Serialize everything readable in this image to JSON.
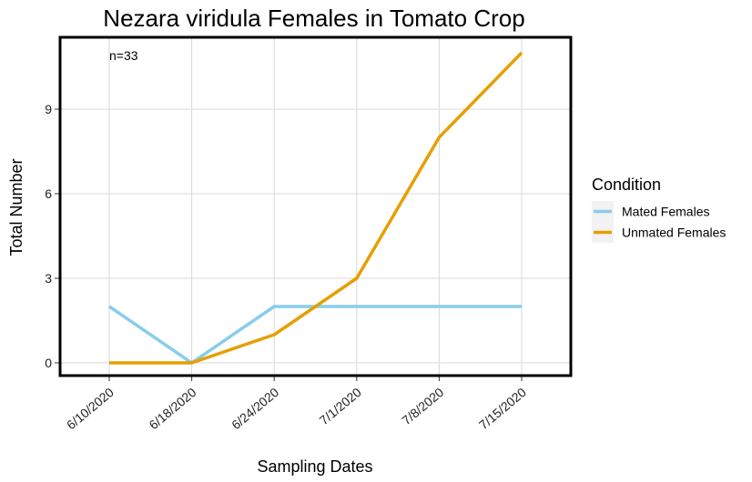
{
  "chart_data": {
    "type": "line",
    "title": "Nezara viridula Females in Tomato Crop",
    "xlabel": "Sampling Dates",
    "ylabel": "Total Number",
    "categories": [
      "6/10/2020",
      "6/18/2020",
      "6/24/2020",
      "7/1/2020",
      "7/8/2020",
      "7/15/2020"
    ],
    "yticks": [
      0,
      3,
      6,
      9
    ],
    "ylim": [
      -0.5,
      11.6
    ],
    "grid": true,
    "annotation": "n=33",
    "legend": {
      "title": "Condition",
      "position": "right"
    },
    "series": [
      {
        "name": "Mated Females",
        "color": "#87ceeb",
        "values": [
          2,
          0,
          2,
          2,
          2,
          2
        ]
      },
      {
        "name": "Unmated Females",
        "color": "#e69f00",
        "values": [
          0,
          0,
          1,
          3,
          8,
          11
        ]
      }
    ]
  }
}
